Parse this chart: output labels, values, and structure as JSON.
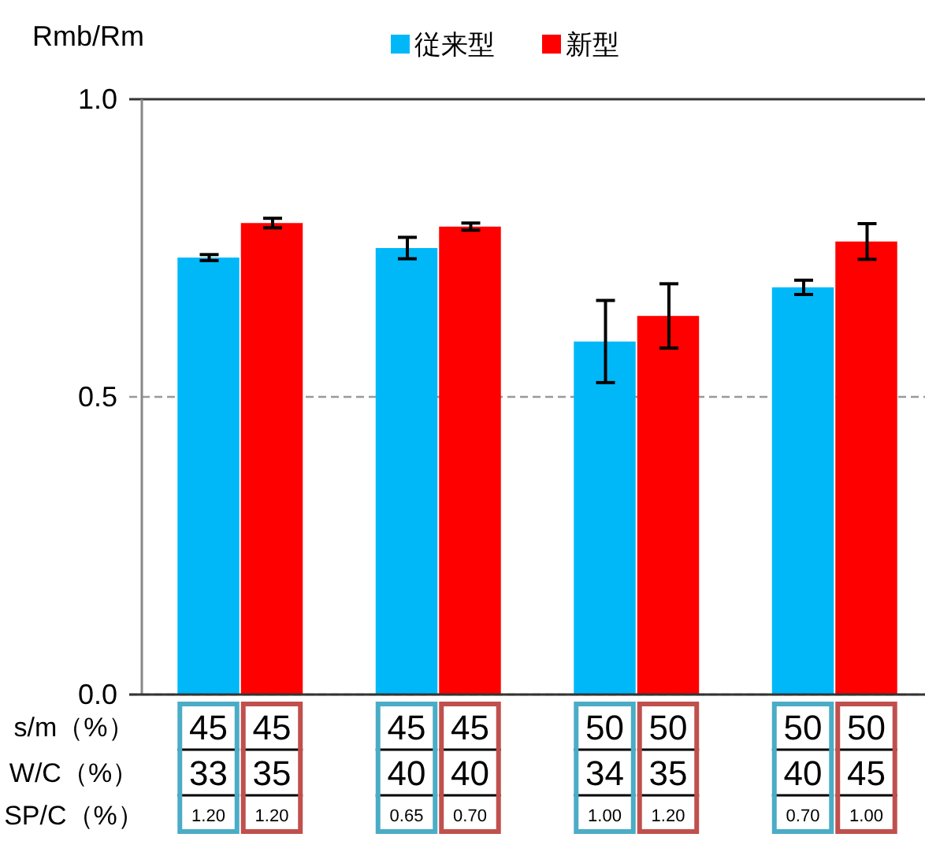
{
  "chart_data": {
    "type": "bar",
    "ylabel": "Rmb/Rm",
    "categories": [
      null,
      null,
      null,
      null
    ],
    "series": [
      {
        "name": "従来型",
        "color": "#00b8f8",
        "values": [
          0.734,
          0.75,
          0.593,
          0.684
        ],
        "errors": [
          0.005,
          0.018,
          0.069,
          0.012
        ]
      },
      {
        "name": "新型",
        "color": "#ff0000",
        "values": [
          0.792,
          0.786,
          0.636,
          0.761
        ],
        "errors": [
          0.008,
          0.006,
          0.054,
          0.03
        ]
      }
    ],
    "ylim": [
      0,
      1
    ],
    "yticks": [
      {
        "value": 0,
        "label": "0.0"
      },
      {
        "value": 0.5,
        "label": "0.5"
      },
      {
        "value": 1,
        "label": "1.0"
      }
    ],
    "grid": "y",
    "legend": "top",
    "annotations": [
      "s/m（%）",
      "W/C（%）",
      "SP/C（%）",
      "45",
      "33",
      "1.20",
      "45",
      "35",
      "1.20",
      "45",
      "40",
      "0.65",
      "45",
      "40",
      "0.70",
      "50",
      "34",
      "1.00",
      "50",
      "35",
      "1.20",
      "50",
      "40",
      "0.70",
      "50",
      "45",
      "1.00"
    ]
  }
}
